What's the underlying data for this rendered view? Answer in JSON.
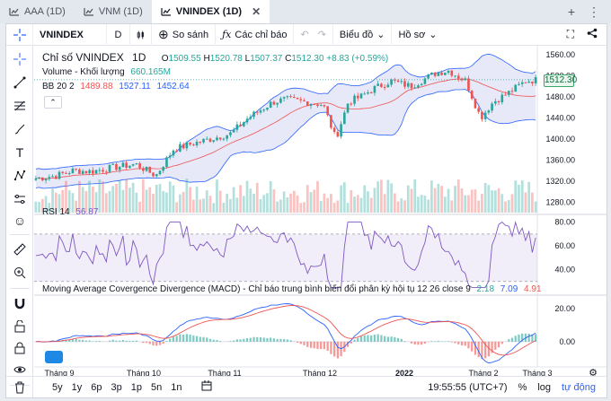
{
  "tabs": [
    {
      "label": "AAA (1D)",
      "active": false
    },
    {
      "label": "VNM (1D)",
      "active": false
    },
    {
      "label": "VNINDEX (1D)",
      "active": true
    }
  ],
  "toolbar": {
    "symbol": "VNINDEX",
    "interval": "D",
    "compare": "So sánh",
    "indicators": "Các chỉ báo",
    "chart_type": "Biểu đồ",
    "profile": "Hồ sơ"
  },
  "legend": {
    "name": "Chỉ số VNINDEX",
    "interval": "1D",
    "o_label": "O",
    "open": "1509.55",
    "h_label": "H",
    "high": "1520.78",
    "l_label": "L",
    "low": "1507.37",
    "c_label": "C",
    "close": "1512.30",
    "change": "+8.83 (+0.59%)",
    "volume_label": "Volume - Khối lượng",
    "volume_value": "660.165M",
    "bb_label": "BB 20 2",
    "bb_mid": "1489.88",
    "bb_up": "1527.11",
    "bb_low": "1452.64",
    "rsi_label": "RSI 14",
    "rsi_value": "56.87",
    "macd_label": "Moving Average Covergence Divergence (MACD) - Chỉ báo trung bình biến đổi phân kỳ hội tụ 12 26 close 9",
    "macd_hist": "2.18",
    "macd_line": "7.09",
    "macd_signal": "4.91"
  },
  "price_tag": "1512.30",
  "price_axis": [
    "1560.00",
    "1520.00",
    "1480.00",
    "1440.00",
    "1400.00",
    "1360.00",
    "1320.00",
    "1280.00"
  ],
  "rsi_axis": [
    "80.00",
    "60.00",
    "40.00"
  ],
  "macd_axis": [
    "20.00",
    "0.00"
  ],
  "time_axis": [
    "Tháng 9",
    "Tháng 10",
    "Tháng 11",
    "Tháng 12",
    "2022",
    "Tháng 2",
    "Tháng 3"
  ],
  "bottom": {
    "ranges": [
      "5y",
      "1y",
      "6p",
      "3p",
      "1p",
      "5n",
      "1n"
    ],
    "time": "19:55:55 (UTC+7)",
    "percent": "%",
    "log": "log",
    "auto": "tự động"
  },
  "colors": {
    "up": "#26a69a",
    "down": "#ef5350",
    "bb_band": "#7c7fd8",
    "rsi": "#7e57c2",
    "macd": "#2962ff",
    "signal": "#ef5350"
  }
}
